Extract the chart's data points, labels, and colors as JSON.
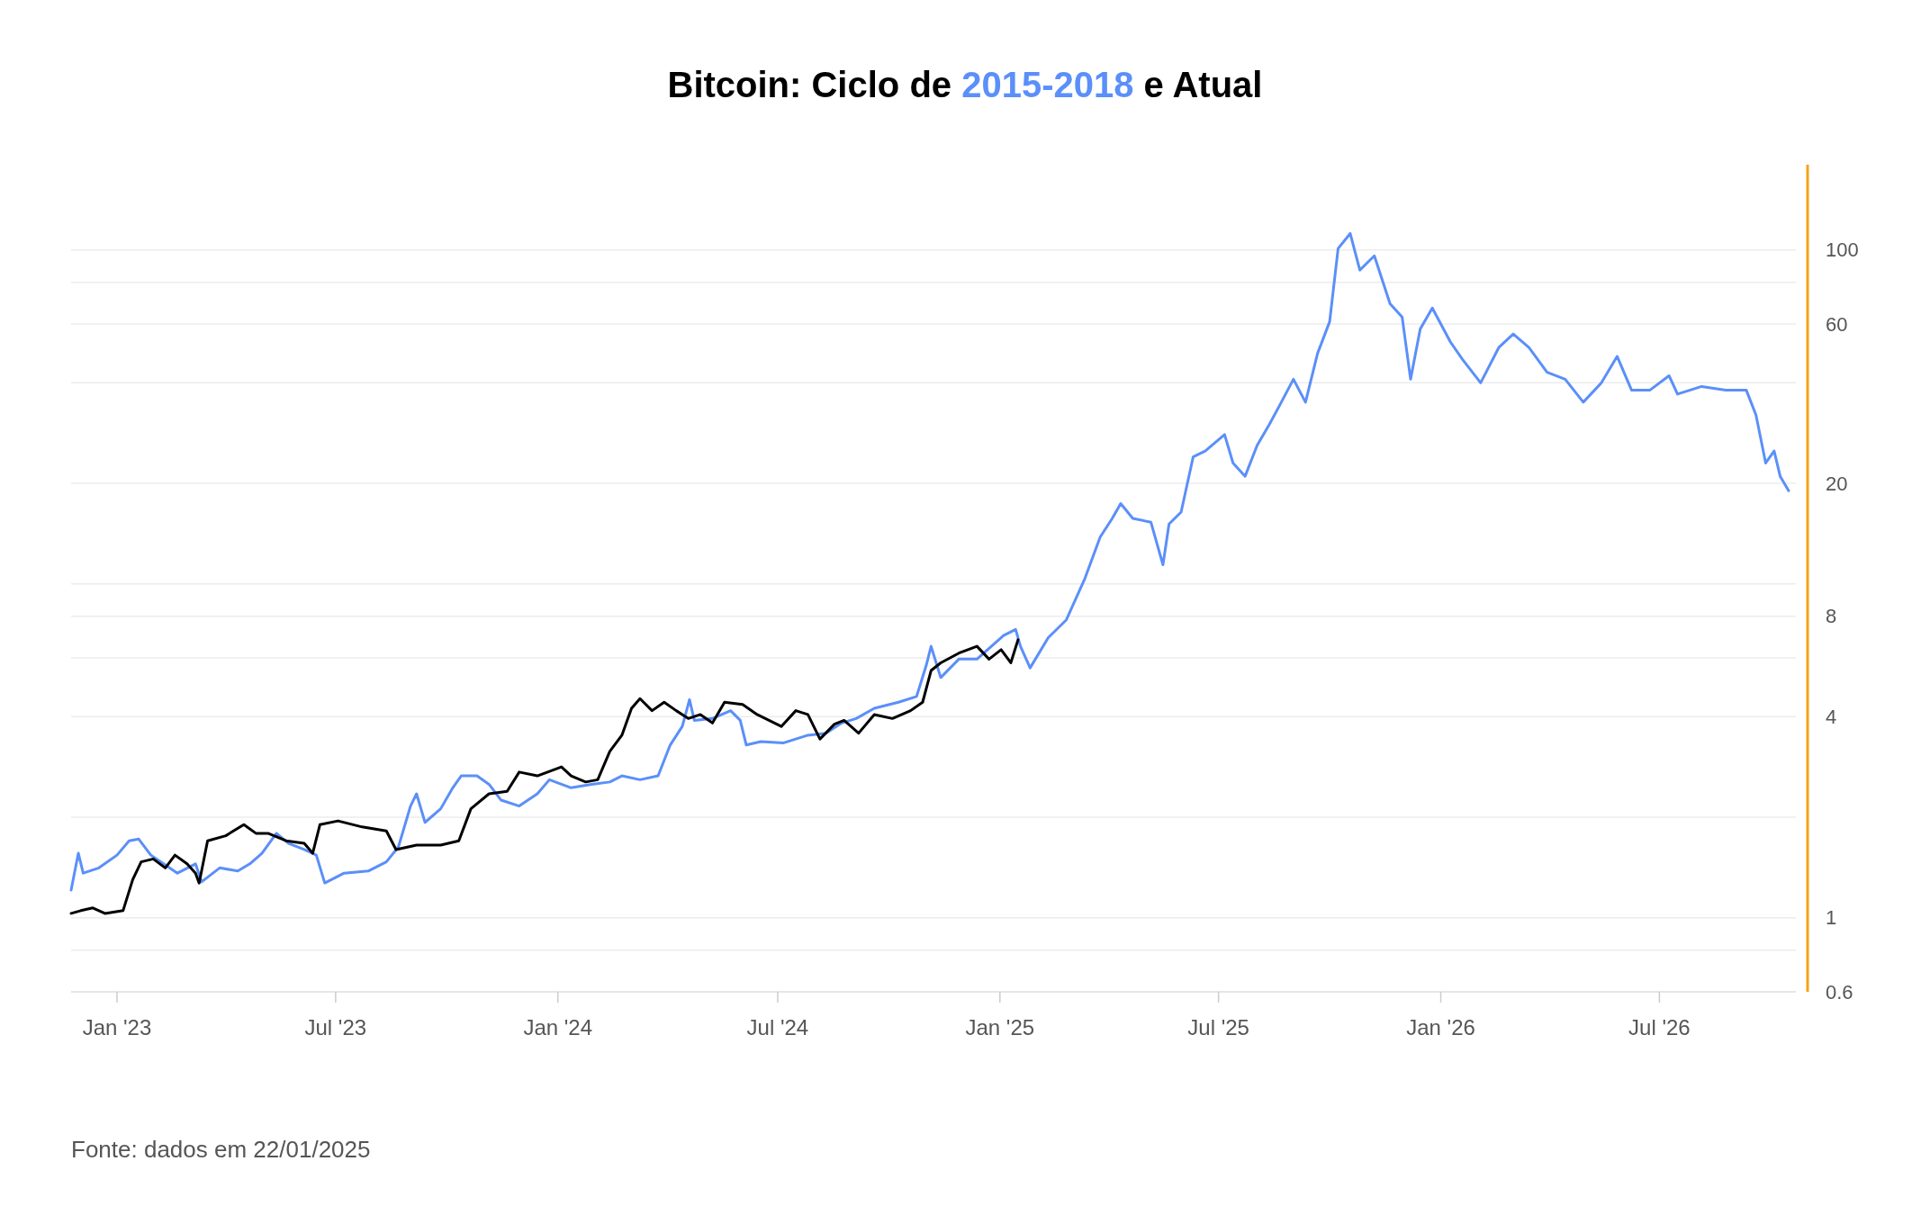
{
  "chart_data": {
    "type": "line",
    "title": "Bitcoin: Ciclo de 2015-2018 e Atual",
    "log": "y",
    "grid": "y",
    "legend": false,
    "marker": "none",
    "line_style": "solid",
    "xlim": [
      "2022-11-24",
      "2026-10-22"
    ],
    "ylim": [
      0.6,
      180
    ],
    "xticks": [
      {
        "value": "2023-01-01",
        "label": "Jan '23"
      },
      {
        "value": "2023-07-01",
        "label": "Jul '23"
      },
      {
        "value": "2024-01-01",
        "label": "Jan '24"
      },
      {
        "value": "2024-07-01",
        "label": "Jul '24"
      },
      {
        "value": "2025-01-01",
        "label": "Jan '25"
      },
      {
        "value": "2025-07-01",
        "label": "Jul '25"
      },
      {
        "value": "2026-01-01",
        "label": "Jan '26"
      },
      {
        "value": "2026-07-01",
        "label": "Jul '26"
      }
    ],
    "yticks": [
      0.6,
      {
        "value": 0.8,
        "label": null
      },
      1,
      {
        "value": 2,
        "label": null
      },
      4,
      {
        "value": 6,
        "label": null
      },
      8,
      {
        "value": 10,
        "label": null
      },
      20,
      {
        "value": 40,
        "label": null
      },
      60,
      {
        "value": 80,
        "label": null
      },
      100
    ],
    "annotations": [
      "Fonte: dados em 22/01/2025"
    ],
    "series": [
      {
        "color": "#5b8ff9",
        "x": [
          "2022-11-24",
          "2022-11-30",
          "2022-12-04",
          "2022-12-17",
          "2023-01-01",
          "2023-01-11",
          "2023-01-19",
          "2023-01-29",
          "2023-02-10",
          "2023-02-20",
          "2023-03-07",
          "2023-03-12",
          "2023-03-27",
          "2023-04-11",
          "2023-04-21",
          "2023-05-01",
          "2023-05-13",
          "2023-05-23",
          "2023-06-05",
          "2023-06-15",
          "2023-06-22",
          "2023-07-08",
          "2023-07-28",
          "2023-08-12",
          "2023-08-22",
          "2023-09-01",
          "2023-09-06",
          "2023-09-13",
          "2023-09-26",
          "2023-10-06",
          "2023-10-13",
          "2023-10-26",
          "2023-11-05",
          "2023-11-15",
          "2023-11-30",
          "2023-12-15",
          "2023-12-25",
          "2024-01-12",
          "2024-01-29",
          "2024-02-13",
          "2024-02-23",
          "2024-03-09",
          "2024-03-24",
          "2024-04-03",
          "2024-04-13",
          "2024-04-19",
          "2024-04-23",
          "2024-05-08",
          "2024-05-23",
          "2024-05-31",
          "2024-06-05",
          "2024-06-17",
          "2024-07-06",
          "2024-07-26",
          "2024-08-10",
          "2024-08-23",
          "2024-09-04",
          "2024-09-19",
          "2024-10-09",
          "2024-10-24",
          "2024-11-01",
          "2024-11-05",
          "2024-11-13",
          "2024-11-28",
          "2024-12-13",
          "2025-01-04",
          "2025-01-14",
          "2025-01-18",
          "2025-01-26",
          "2025-02-10",
          "2025-02-25",
          "2025-03-12",
          "2025-03-25",
          "2025-04-04",
          "2025-04-11",
          "2025-04-21",
          "2025-05-06",
          "2025-05-16",
          "2025-05-21",
          "2025-05-31",
          "2025-06-10",
          "2025-06-20",
          "2025-07-06",
          "2025-07-13",
          "2025-07-23",
          "2025-08-02",
          "2025-08-12",
          "2025-08-22",
          "2025-09-01",
          "2025-09-11",
          "2025-09-21",
          "2025-10-01",
          "2025-10-08",
          "2025-10-18",
          "2025-10-26",
          "2025-11-07",
          "2025-11-20",
          "2025-11-30",
          "2025-12-07",
          "2025-12-15",
          "2025-12-25",
          "2026-01-09",
          "2026-01-19",
          "2026-02-03",
          "2026-02-18",
          "2026-03-02",
          "2026-03-15",
          "2026-03-30",
          "2026-04-14",
          "2026-04-29",
          "2026-05-14",
          "2026-05-27",
          "2026-06-08",
          "2026-06-23",
          "2026-07-09",
          "2026-07-16",
          "2026-08-05",
          "2026-08-25",
          "2026-09-11",
          "2026-09-19",
          "2026-09-27",
          "2026-10-04",
          "2026-10-09",
          "2026-10-16"
        ],
        "values": [
          1.21,
          1.56,
          1.36,
          1.41,
          1.54,
          1.7,
          1.72,
          1.54,
          1.44,
          1.36,
          1.45,
          1.28,
          1.41,
          1.38,
          1.45,
          1.56,
          1.79,
          1.67,
          1.6,
          1.54,
          1.27,
          1.36,
          1.38,
          1.47,
          1.63,
          2.16,
          2.35,
          1.93,
          2.12,
          2.45,
          2.66,
          2.66,
          2.51,
          2.25,
          2.16,
          2.35,
          2.59,
          2.45,
          2.51,
          2.55,
          2.66,
          2.59,
          2.66,
          3.29,
          3.74,
          4.5,
          3.9,
          3.95,
          4.17,
          3.9,
          3.29,
          3.37,
          3.34,
          3.52,
          3.57,
          3.83,
          3.95,
          4.24,
          4.42,
          4.6,
          5.7,
          6.5,
          5.24,
          5.95,
          5.95,
          7.0,
          7.3,
          6.5,
          5.6,
          6.9,
          7.8,
          10.3,
          13.8,
          15.7,
          17.4,
          15.7,
          15.3,
          11.4,
          15.1,
          16.4,
          24,
          25,
          28,
          23,
          21,
          26,
          30,
          35,
          41,
          35,
          49,
          61,
          101,
          112,
          87,
          96,
          69,
          63,
          41,
          58,
          67,
          53,
          47,
          40,
          51,
          56,
          51,
          43,
          41,
          35,
          40,
          48,
          38,
          38,
          42,
          37,
          39,
          38,
          38,
          32,
          23,
          25,
          21,
          19
        ]
      },
      {
        "color": "#000000",
        "x": [
          "2022-11-24",
          "2022-12-02",
          "2022-12-12",
          "2022-12-22",
          "2023-01-06",
          "2023-01-14",
          "2023-01-21",
          "2023-01-31",
          "2023-02-10",
          "2023-02-18",
          "2023-02-28",
          "2023-03-07",
          "2023-03-10",
          "2023-03-17",
          "2023-04-01",
          "2023-04-16",
          "2023-04-26",
          "2023-05-06",
          "2023-05-21",
          "2023-06-05",
          "2023-06-12",
          "2023-06-18",
          "2023-07-03",
          "2023-07-23",
          "2023-08-12",
          "2023-08-20",
          "2023-09-06",
          "2023-09-26",
          "2023-10-11",
          "2023-10-21",
          "2023-11-05",
          "2023-11-20",
          "2023-11-30",
          "2023-12-15",
          "2024-01-04",
          "2024-01-12",
          "2024-01-24",
          "2024-02-03",
          "2024-02-13",
          "2024-02-23",
          "2024-03-02",
          "2024-03-09",
          "2024-03-19",
          "2024-03-29",
          "2024-04-08",
          "2024-04-18",
          "2024-04-28",
          "2024-05-08",
          "2024-05-18",
          "2024-06-02",
          "2024-06-14",
          "2024-07-04",
          "2024-07-16",
          "2024-07-26",
          "2024-08-05",
          "2024-08-17",
          "2024-08-25",
          "2024-09-06",
          "2024-09-19",
          "2024-10-04",
          "2024-10-19",
          "2024-10-29",
          "2024-11-05",
          "2024-11-13",
          "2024-11-28",
          "2024-12-13",
          "2024-12-23",
          "2025-01-02",
          "2025-01-10",
          "2025-01-16"
        ],
        "values": [
          1.03,
          1.05,
          1.07,
          1.03,
          1.05,
          1.3,
          1.47,
          1.5,
          1.41,
          1.54,
          1.45,
          1.36,
          1.27,
          1.7,
          1.76,
          1.9,
          1.79,
          1.79,
          1.7,
          1.67,
          1.56,
          1.9,
          1.95,
          1.87,
          1.82,
          1.6,
          1.65,
          1.65,
          1.7,
          2.12,
          2.35,
          2.39,
          2.73,
          2.66,
          2.83,
          2.66,
          2.55,
          2.59,
          3.15,
          3.52,
          4.24,
          4.53,
          4.17,
          4.42,
          4.17,
          3.95,
          4.06,
          3.83,
          4.42,
          4.35,
          4.06,
          3.74,
          4.17,
          4.06,
          3.43,
          3.8,
          3.9,
          3.57,
          4.06,
          3.95,
          4.17,
          4.42,
          5.5,
          5.8,
          6.2,
          6.5,
          5.95,
          6.35,
          5.8,
          6.8
        ]
      }
    ]
  }
}
